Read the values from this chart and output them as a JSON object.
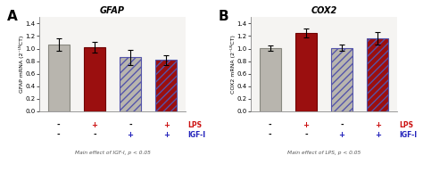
{
  "panel_A": {
    "title": "GFAP",
    "ylabel": "GFAP mRNA (2⁻ᴸᴺCT)",
    "bars": [
      1.06,
      1.02,
      0.86,
      0.82
    ],
    "errors": [
      0.1,
      0.09,
      0.12,
      0.08
    ],
    "bar_facecolors": [
      "#b8b5ae",
      "#9b0f0f",
      "#b8b5ae",
      "#9b0f0f"
    ],
    "bar_edgecolors": [
      "#888880",
      "#700000",
      "#5555aa",
      "#5555aa"
    ],
    "hatches": [
      "",
      "",
      "////",
      "////"
    ],
    "ylim": [
      0,
      1.5
    ],
    "yticks": [
      0.0,
      0.2,
      0.4,
      0.6,
      0.8,
      1.0,
      1.2,
      1.4
    ],
    "xlabel_rows": [
      [
        "-",
        "+",
        "-",
        "+"
      ],
      [
        "-",
        "-",
        "+",
        "+"
      ]
    ],
    "xlabel_colors": [
      [
        "black",
        "#cc1111",
        "black",
        "#cc1111"
      ],
      [
        "black",
        "black",
        "#2222bb",
        "#2222bb"
      ]
    ],
    "footnote": "Main effect of IGF-I, p < 0.05",
    "panel_label": "A"
  },
  "panel_B": {
    "title": "COX2",
    "ylabel": "COX2 mRNA (2⁻ᴸᴺCT)",
    "bars": [
      1.01,
      1.25,
      1.01,
      1.17
    ],
    "errors": [
      0.04,
      0.07,
      0.05,
      0.1
    ],
    "bar_facecolors": [
      "#b8b5ae",
      "#9b0f0f",
      "#b8b5ae",
      "#9b0f0f"
    ],
    "bar_edgecolors": [
      "#888880",
      "#700000",
      "#5555aa",
      "#5555aa"
    ],
    "hatches": [
      "",
      "",
      "////",
      "////"
    ],
    "ylim": [
      0,
      1.5
    ],
    "yticks": [
      0.0,
      0.2,
      0.4,
      0.6,
      0.8,
      1.0,
      1.2,
      1.4
    ],
    "xlabel_rows": [
      [
        "-",
        "+",
        "-",
        "+"
      ],
      [
        "-",
        "-",
        "+",
        "+"
      ]
    ],
    "xlabel_colors": [
      [
        "black",
        "#cc1111",
        "black",
        "#cc1111"
      ],
      [
        "black",
        "black",
        "#2222bb",
        "#2222bb"
      ]
    ],
    "footnote": "Main effect of LPS, p < 0.05",
    "panel_label": "B"
  },
  "legend_lps_color": "#cc1111",
  "legend_igfi_color": "#2222bb",
  "bar_width": 0.6,
  "background_color": "#ffffff",
  "plot_bg_color": "#f5f4f2"
}
